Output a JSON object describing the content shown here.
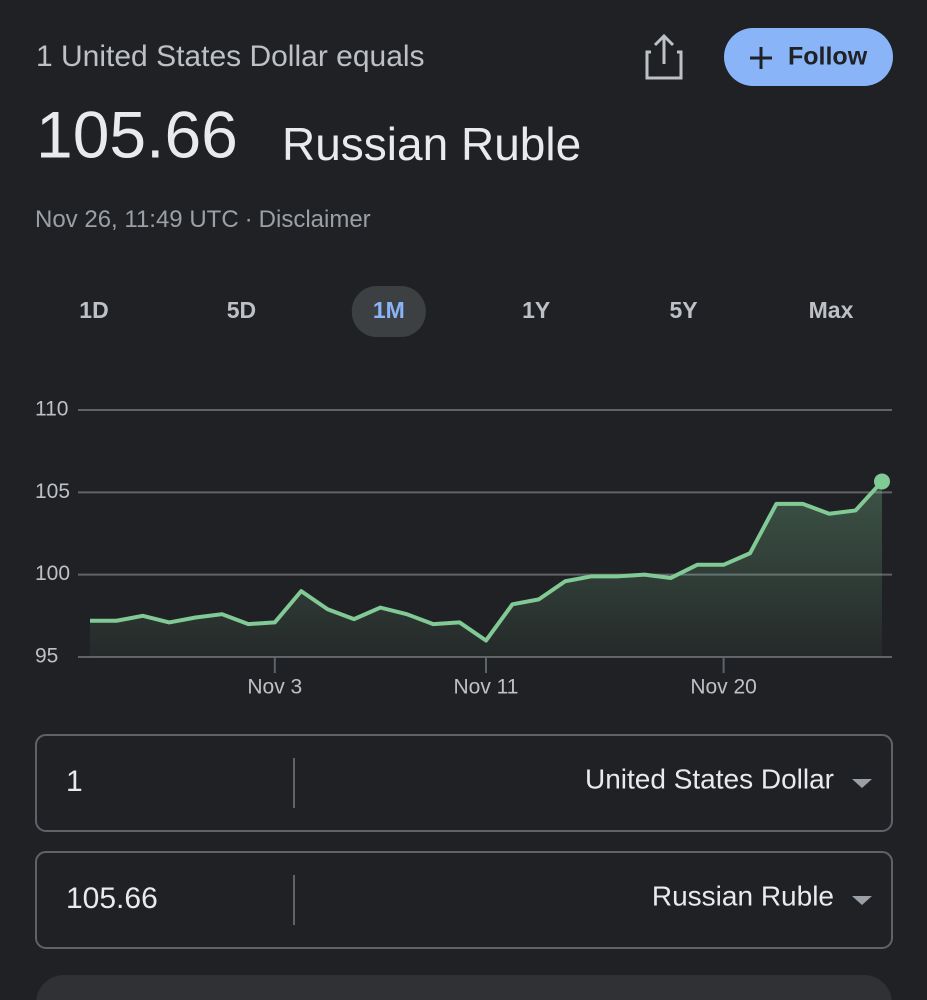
{
  "header": {
    "subtitle": "1 United States Dollar equals",
    "rate": "105.66",
    "currency": "Russian Ruble",
    "timestamp": "Nov 26, 11:49 UTC",
    "separator": "·",
    "disclaimer": "Disclaimer",
    "follow": "Follow"
  },
  "tabs": [
    "1D",
    "5D",
    "1M",
    "1Y",
    "5Y",
    "Max"
  ],
  "selected_tab": 2,
  "chart_data": {
    "type": "line",
    "categories": [
      null,
      null,
      null,
      null,
      null,
      null,
      null,
      "Nov 3",
      null,
      null,
      null,
      null,
      null,
      null,
      null,
      "Nov 11",
      null,
      null,
      null,
      null,
      null,
      null,
      null,
      null,
      "Nov 20",
      null,
      null,
      null,
      null,
      null,
      null
    ],
    "values": [
      97.2,
      97.2,
      97.5,
      97.1,
      97.4,
      97.6,
      97.0,
      97.1,
      99.0,
      97.9,
      97.3,
      98.0,
      97.6,
      97.0,
      97.1,
      96.0,
      98.2,
      98.5,
      99.6,
      99.9,
      99.9,
      100.0,
      99.8,
      100.6,
      100.6,
      101.3,
      104.3,
      104.3,
      103.7,
      103.9,
      105.66
    ],
    "color": "#81c995",
    "ylim": [
      95,
      110
    ],
    "yticks": [
      95,
      100,
      105,
      110
    ],
    "grid": true
  },
  "converter": [
    {
      "amount": "1",
      "currency": "United States Dollar"
    },
    {
      "amount": "105.66",
      "currency": "Russian Ruble"
    }
  ]
}
